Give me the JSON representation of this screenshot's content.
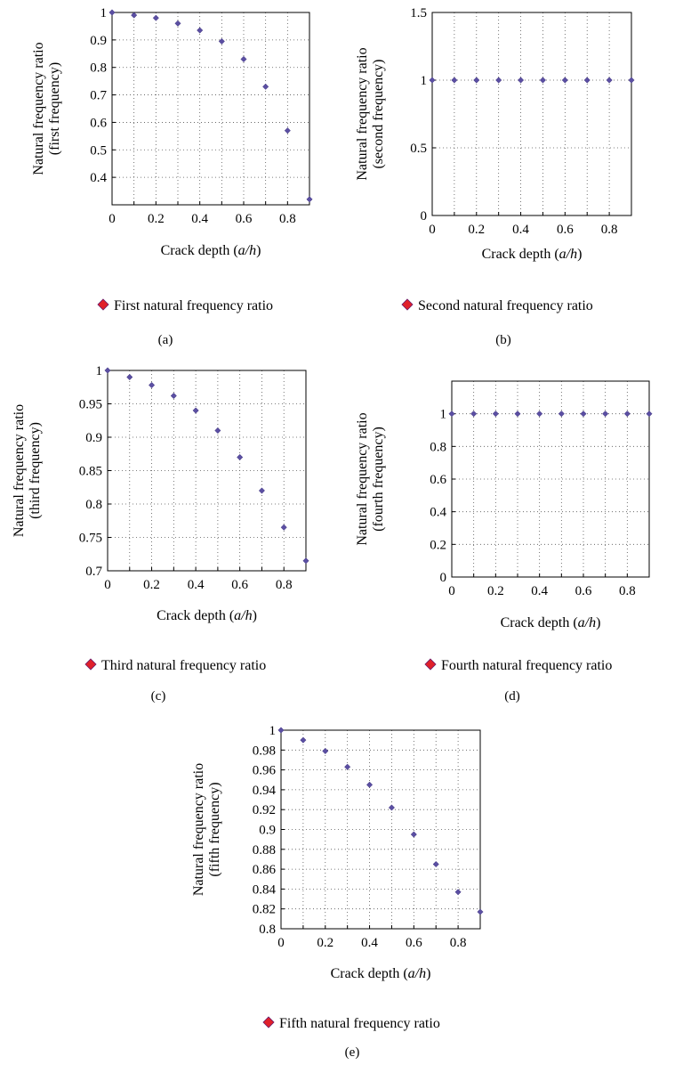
{
  "chart_data": [
    {
      "type": "scatter",
      "panel": "(a)",
      "xlabel": "Crack depth (a/h)",
      "ylabel": [
        "Natural frequency ratio",
        "(first frequency)"
      ],
      "xlim": [
        0,
        0.9
      ],
      "ylim": [
        0.3,
        1
      ],
      "xticks": [
        0,
        0.2,
        0.4,
        0.6,
        0.8
      ],
      "xticks_grid": [
        0,
        0.1,
        0.2,
        0.3,
        0.4,
        0.5,
        0.6,
        0.7,
        0.8,
        0.9
      ],
      "yticks": [
        0.4,
        0.5,
        0.6,
        0.7,
        0.8,
        0.9,
        1
      ],
      "yticks_grid": [
        0.4,
        0.5,
        0.6,
        0.7,
        0.8,
        0.9,
        1
      ],
      "grid": true,
      "legend": "below",
      "series": [
        {
          "name": "First natural frequency ratio",
          "color": "#5b4fa3",
          "x": [
            0,
            0.1,
            0.2,
            0.3,
            0.4,
            0.5,
            0.6,
            0.7,
            0.8,
            0.9
          ],
          "y": [
            1.0,
            0.99,
            0.98,
            0.96,
            0.935,
            0.895,
            0.83,
            0.73,
            0.57,
            0.32
          ]
        }
      ]
    },
    {
      "type": "scatter",
      "panel": "(b)",
      "xlabel": "Crack depth (a/h)",
      "ylabel": [
        "Natural frequency ratio",
        "(second frequency)"
      ],
      "xlim": [
        0,
        0.9
      ],
      "ylim": [
        0,
        1.5
      ],
      "xticks": [
        0,
        0.2,
        0.4,
        0.6,
        0.8
      ],
      "xticks_grid": [
        0,
        0.1,
        0.2,
        0.3,
        0.4,
        0.5,
        0.6,
        0.7,
        0.8,
        0.9
      ],
      "yticks": [
        0,
        0.5,
        1,
        1.5
      ],
      "yticks_grid": [
        0,
        0.5,
        1,
        1.5
      ],
      "grid": true,
      "legend": "below",
      "series": [
        {
          "name": "Second natural frequency ratio",
          "color": "#5b4fa3",
          "x": [
            0,
            0.1,
            0.2,
            0.3,
            0.4,
            0.5,
            0.6,
            0.7,
            0.8,
            0.9
          ],
          "y": [
            1,
            1,
            1,
            1,
            1,
            1,
            1,
            1,
            1,
            1
          ]
        }
      ]
    },
    {
      "type": "scatter",
      "panel": "(c)",
      "xlabel": "Crack depth (a/h)",
      "ylabel": [
        "Natural frequency ratio",
        "(third frequency)"
      ],
      "xlim": [
        0,
        0.9
      ],
      "ylim": [
        0.7,
        1
      ],
      "xticks": [
        0,
        0.2,
        0.4,
        0.6,
        0.8
      ],
      "xticks_grid": [
        0,
        0.1,
        0.2,
        0.3,
        0.4,
        0.5,
        0.6,
        0.7,
        0.8,
        0.9
      ],
      "yticks": [
        0.7,
        0.75,
        0.8,
        0.85,
        0.9,
        0.95,
        1
      ],
      "yticks_grid": [
        0.7,
        0.75,
        0.8,
        0.85,
        0.9,
        0.95,
        1
      ],
      "grid": true,
      "legend": "below",
      "series": [
        {
          "name": "Third natural frequency ratio",
          "color": "#5b4fa3",
          "x": [
            0,
            0.1,
            0.2,
            0.3,
            0.4,
            0.5,
            0.6,
            0.7,
            0.8,
            0.9
          ],
          "y": [
            1.0,
            0.99,
            0.978,
            0.962,
            0.94,
            0.91,
            0.87,
            0.82,
            0.765,
            0.715
          ]
        }
      ]
    },
    {
      "type": "scatter",
      "panel": "(d)",
      "xlabel": "Crack depth (a/h)",
      "ylabel": [
        "Natural frequency ratio",
        "(fourth frequency)"
      ],
      "xlim": [
        0,
        0.9
      ],
      "ylim": [
        0,
        1.2
      ],
      "xticks": [
        0,
        0.2,
        0.4,
        0.6,
        0.8
      ],
      "xticks_grid": [
        0,
        0.1,
        0.2,
        0.3,
        0.4,
        0.5,
        0.6,
        0.7,
        0.8,
        0.9
      ],
      "yticks": [
        0,
        0.2,
        0.4,
        0.6,
        0.8,
        1
      ],
      "yticks_grid": [
        0,
        0.2,
        0.4,
        0.6,
        0.8,
        1,
        1.2
      ],
      "grid": true,
      "legend": "below",
      "series": [
        {
          "name": "Fourth natural frequency ratio",
          "color": "#5b4fa3",
          "x": [
            0,
            0.1,
            0.2,
            0.3,
            0.4,
            0.5,
            0.6,
            0.7,
            0.8,
            0.9
          ],
          "y": [
            1,
            1,
            1,
            1,
            1,
            1,
            1,
            1,
            1,
            1
          ]
        }
      ]
    },
    {
      "type": "scatter",
      "panel": "(e)",
      "xlabel": "Crack depth (a/h)",
      "ylabel": [
        "Natural frequency ratio",
        "(fifth frequency)"
      ],
      "xlim": [
        0,
        0.9
      ],
      "ylim": [
        0.8,
        1
      ],
      "xticks": [
        0,
        0.2,
        0.4,
        0.6,
        0.8
      ],
      "xticks_grid": [
        0,
        0.1,
        0.2,
        0.3,
        0.4,
        0.5,
        0.6,
        0.7,
        0.8,
        0.9
      ],
      "yticks": [
        0.8,
        0.82,
        0.84,
        0.86,
        0.88,
        0.9,
        0.92,
        0.94,
        0.96,
        0.98,
        1
      ],
      "yticks_grid": [
        0.8,
        0.82,
        0.84,
        0.86,
        0.88,
        0.9,
        0.92,
        0.94,
        0.96,
        0.98,
        1
      ],
      "grid": true,
      "legend": "below",
      "series": [
        {
          "name": "Fifth natural frequency ratio",
          "color": "#5b4fa3",
          "x": [
            0,
            0.1,
            0.2,
            0.3,
            0.4,
            0.5,
            0.6,
            0.7,
            0.8,
            0.9
          ],
          "y": [
            1.0,
            0.99,
            0.979,
            0.963,
            0.945,
            0.922,
            0.895,
            0.865,
            0.837,
            0.817
          ]
        }
      ]
    }
  ],
  "legend_marker_color": "#e0202a"
}
